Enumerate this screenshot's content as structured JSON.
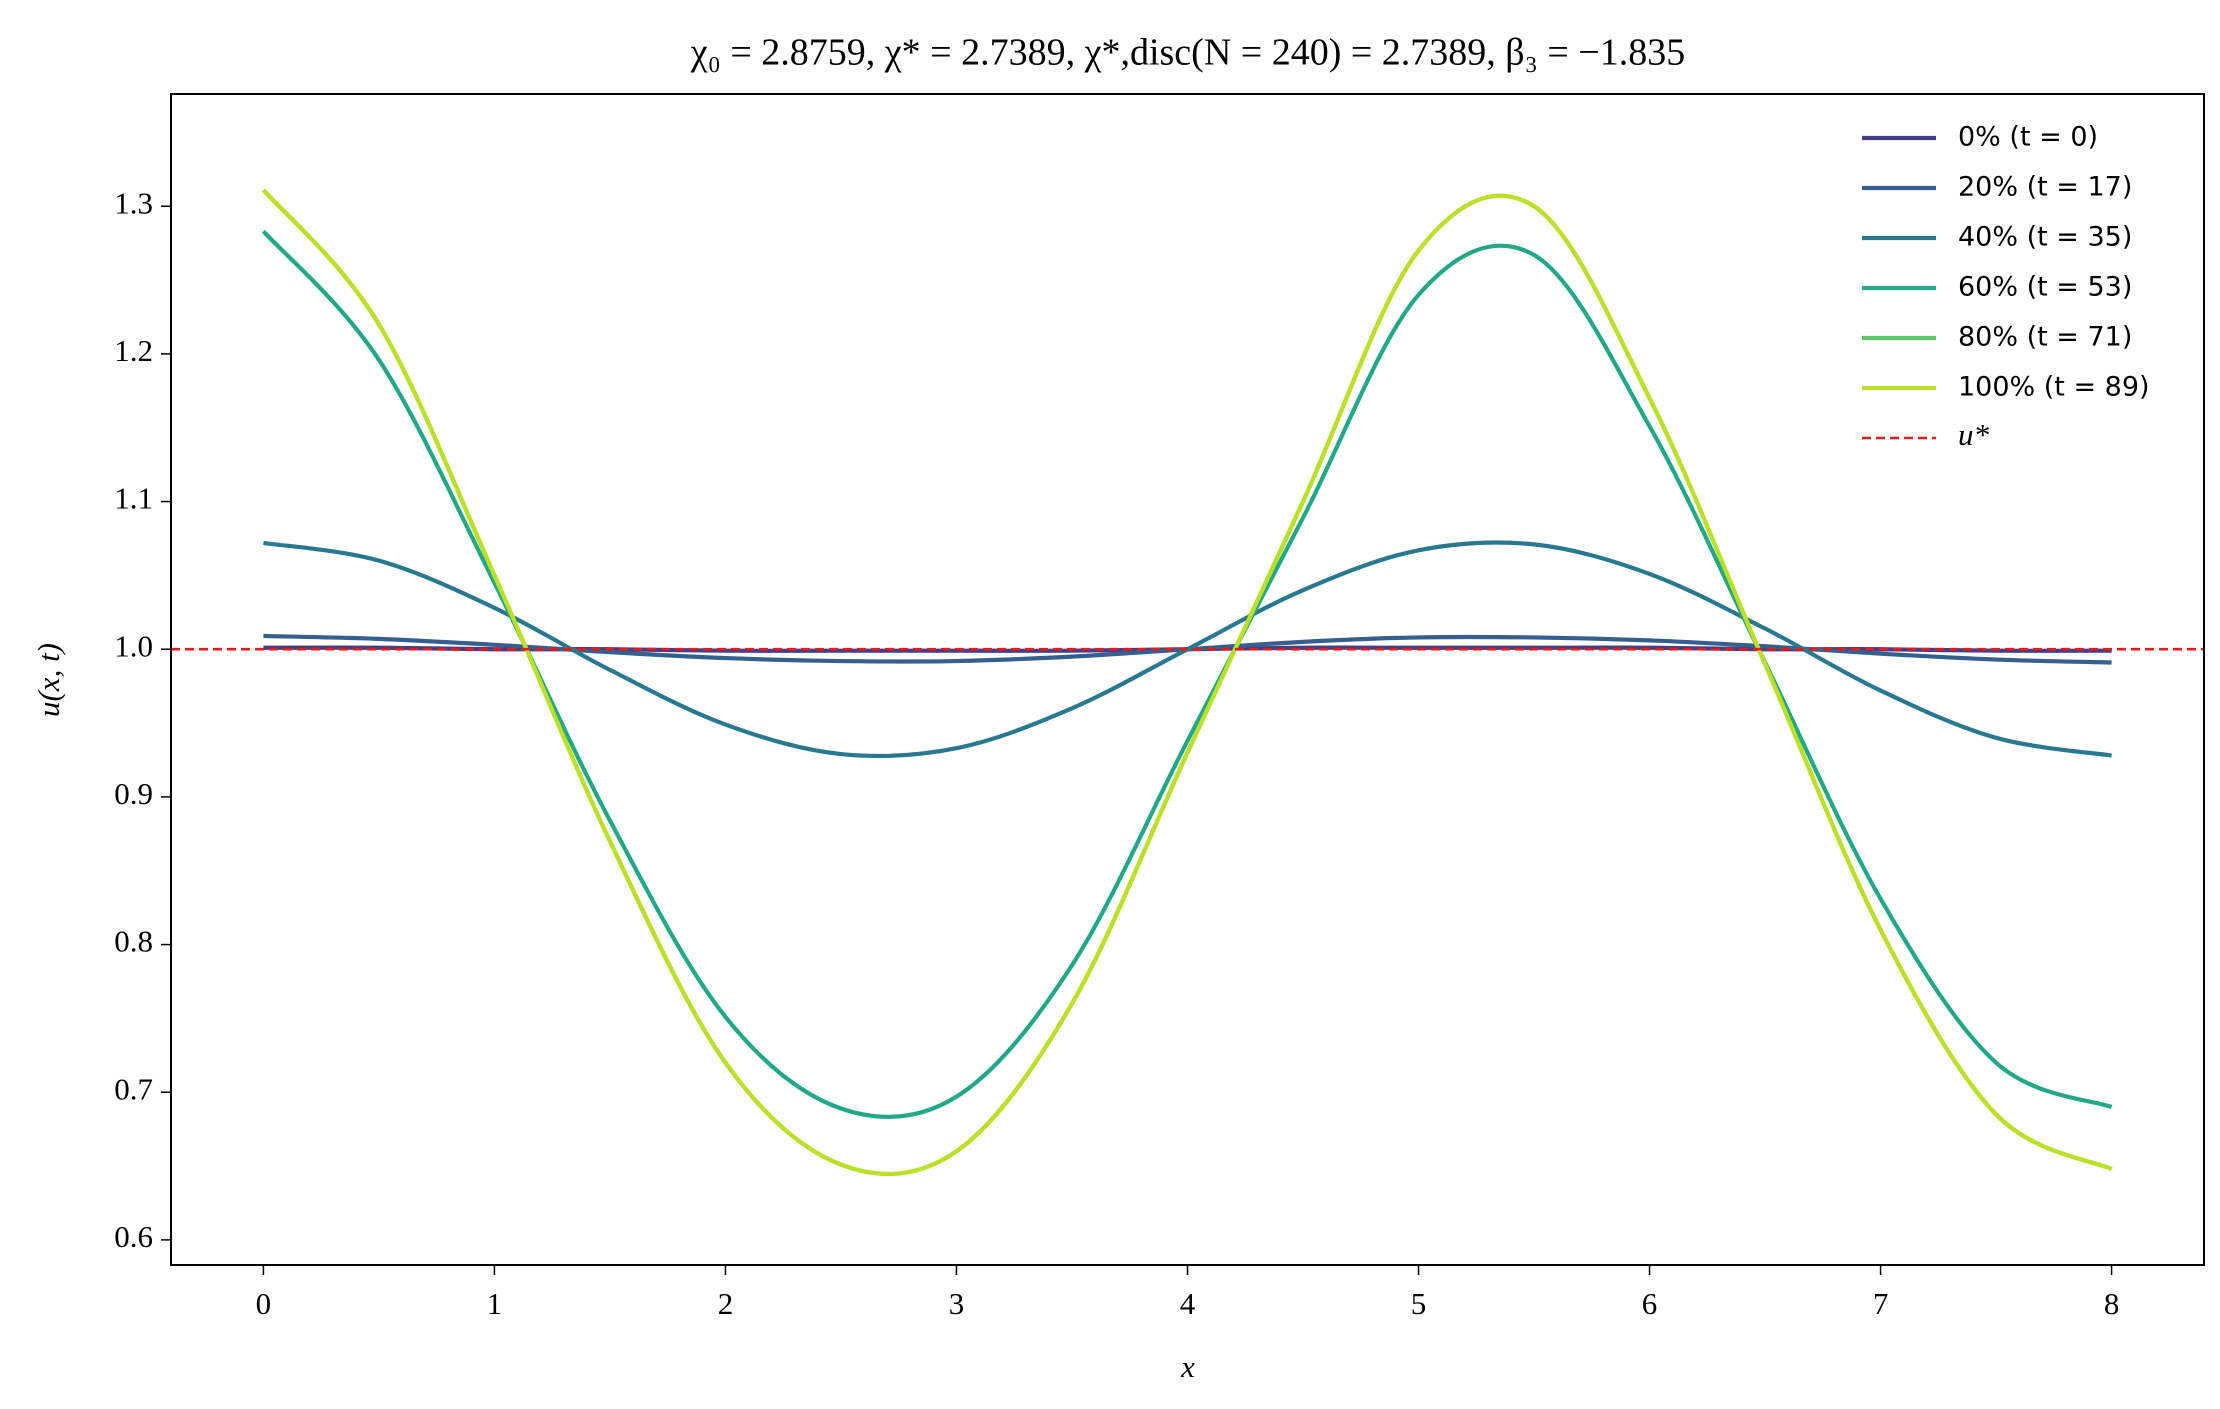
{
  "chart_data": {
    "type": "line",
    "title": "χ₀ = 2.8759,  χ* = 2.7389,  χ*,disc(N = 240) = 2.7389,  β₃ = −1.835",
    "x_label": "x",
    "y_label": "u(x, t)",
    "x": [
      0,
      0.5,
      1,
      1.5,
      2,
      2.5,
      3,
      3.5,
      4,
      4.5,
      5,
      5.5,
      6,
      6.5,
      7,
      7.5,
      8
    ],
    "series": [
      {
        "name": "0% (t = 0)",
        "color": "#433e85",
        "values": [
          1.001,
          1.001,
          1.0,
          1.0,
          0.999,
          0.999,
          0.999,
          0.999,
          1.0,
          1.001,
          1.001,
          1.001,
          1.001,
          1.0,
          1.0,
          0.999,
          0.999
        ]
      },
      {
        "name": "20% (t = 17)",
        "color": "#355f8d",
        "values": [
          1.009,
          1.007,
          1.003,
          0.998,
          0.994,
          0.992,
          0.992,
          0.995,
          1.0,
          1.005,
          1.008,
          1.008,
          1.006,
          1.002,
          0.997,
          0.993,
          0.991
        ]
      },
      {
        "name": "40% (t = 35)",
        "color": "#2a788e",
        "values": [
          1.072,
          1.06,
          1.028,
          0.986,
          0.949,
          0.929,
          0.933,
          0.96,
          1.0,
          1.04,
          1.067,
          1.071,
          1.051,
          1.014,
          0.972,
          0.94,
          0.928
        ]
      },
      {
        "name": "60% (t = 53)",
        "color": "#22a884",
        "values": [
          1.283,
          1.196,
          1.045,
          0.884,
          0.751,
          0.689,
          0.697,
          0.786,
          0.938,
          1.089,
          1.24,
          1.267,
          1.151,
          0.991,
          0.831,
          0.72,
          0.69
        ]
      },
      {
        "name": "80% (t = 71)",
        "color": "#5ec962",
        "values": [
          1.311,
          1.22,
          1.05,
          0.87,
          0.72,
          0.651,
          0.66,
          0.76,
          0.93,
          1.1,
          1.27,
          1.3,
          1.17,
          0.99,
          0.81,
          0.685,
          0.648
        ]
      },
      {
        "name": "100% (t = 89)",
        "color": "#bddf26",
        "values": [
          1.311,
          1.22,
          1.05,
          0.87,
          0.72,
          0.651,
          0.66,
          0.76,
          0.93,
          1.1,
          1.27,
          1.3,
          1.17,
          0.99,
          0.81,
          0.685,
          0.648
        ]
      }
    ],
    "reference_line": {
      "name": "u*",
      "value": 1,
      "color": "#e41a1c",
      "style": "dashed"
    },
    "xlim": [
      -0.4,
      8.4
    ],
    "xticks": [
      0,
      1,
      2,
      3,
      4,
      5,
      6,
      7,
      8
    ],
    "ylim": [
      0.583,
      1.376
    ],
    "yticks": [
      0.6,
      0.7,
      0.8,
      0.9,
      {
        "value": 1,
        "label": "1.0"
      },
      1.1,
      1.2,
      1.3
    ],
    "legend": "upper right",
    "grid": false
  }
}
